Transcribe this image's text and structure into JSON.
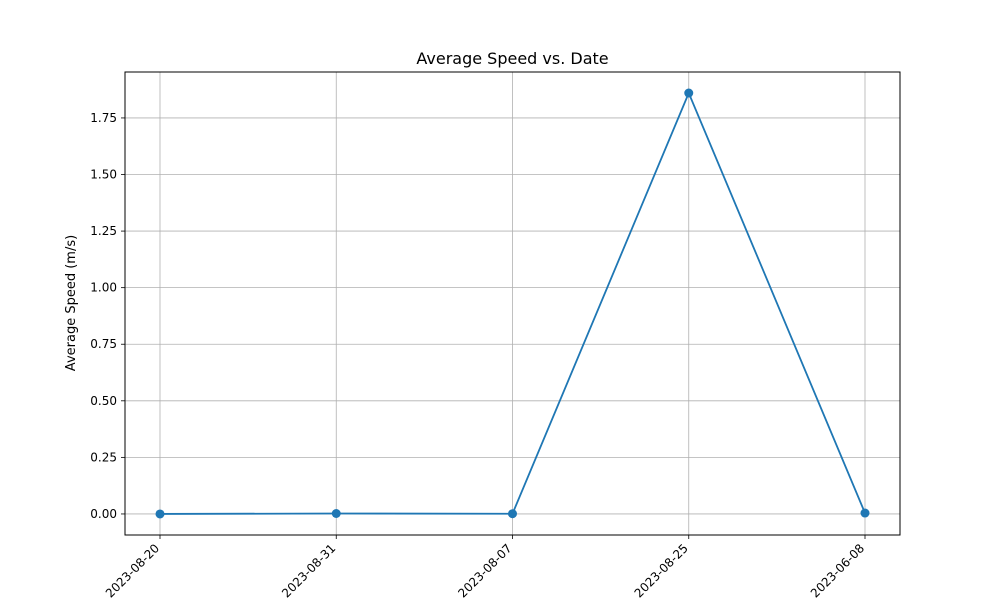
{
  "chart_data": {
    "type": "line",
    "title": "Average Speed vs. Date",
    "xlabel": "",
    "ylabel": "Average Speed (m/s)",
    "categories": [
      "2023-08-20",
      "2023-08-31",
      "2023-08-07",
      "2023-08-25",
      "2023-06-08"
    ],
    "series": [
      {
        "values": [
          0.0,
          0.002,
          0.001,
          1.86,
          0.004
        ]
      }
    ],
    "ylim": [
      -0.093,
      1.953
    ],
    "yticks": [
      0.0,
      0.25,
      0.5,
      0.75,
      1.0,
      1.25,
      1.5,
      1.75
    ],
    "ytick_labels": [
      "0.00",
      "0.25",
      "0.50",
      "0.75",
      "1.00",
      "1.25",
      "1.50",
      "1.75"
    ],
    "grid": true,
    "line_color": "#1f77b4",
    "grid_color": "#b0b0b0"
  }
}
